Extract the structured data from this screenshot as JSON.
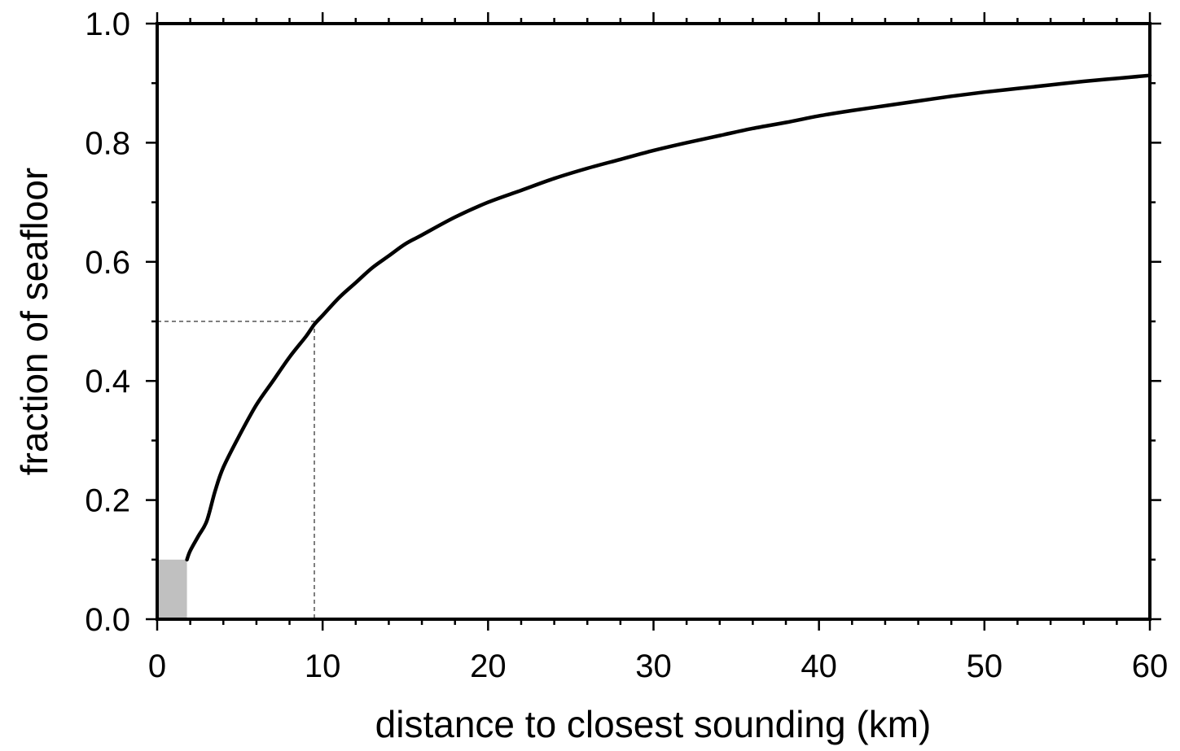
{
  "chart_data": {
    "type": "line",
    "title": "",
    "xlabel": "distance to closest sounding (km)",
    "ylabel": "fraction of seafloor",
    "xlim": [
      0,
      60
    ],
    "ylim": [
      0,
      1.0
    ],
    "x_ticks": [
      "0",
      "10",
      "20",
      "30",
      "40",
      "50",
      "60"
    ],
    "y_ticks": [
      "0.0",
      "0.2",
      "0.4",
      "0.6",
      "0.8",
      "1.0"
    ],
    "grid": false,
    "legend": "none",
    "colors": {
      "line": "#000000",
      "shaded_bar": "#c0c0c0",
      "reference_lines": "#555555"
    },
    "series": [
      {
        "x": [
          1.8,
          2.0,
          2.5,
          3.0,
          3.5,
          4.0,
          5.0,
          6.0,
          7.0,
          8.0,
          9.0,
          9.5,
          10,
          11,
          12,
          13,
          14,
          15,
          16,
          18,
          20,
          22,
          24,
          26,
          28,
          30,
          32,
          34,
          36,
          38,
          40,
          42,
          44,
          46,
          48,
          50,
          52,
          54,
          56,
          58,
          60
        ],
        "y": [
          0.1,
          0.115,
          0.14,
          0.165,
          0.215,
          0.255,
          0.31,
          0.36,
          0.4,
          0.44,
          0.475,
          0.495,
          0.51,
          0.54,
          0.565,
          0.59,
          0.61,
          0.63,
          0.645,
          0.675,
          0.7,
          0.72,
          0.74,
          0.757,
          0.772,
          0.787,
          0.8,
          0.812,
          0.824,
          0.834,
          0.845,
          0.854,
          0.862,
          0.87,
          0.878,
          0.885,
          0.891,
          0.897,
          0.903,
          0.908,
          0.913
        ]
      }
    ],
    "shaded_region": {
      "x": [
        0,
        1.8
      ],
      "y": [
        0,
        0.1
      ]
    },
    "reference": {
      "x": 9.5,
      "y": 0.5
    }
  }
}
